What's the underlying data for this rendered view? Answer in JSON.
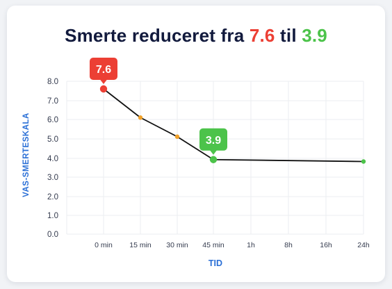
{
  "title": {
    "prefix": "Smerte reduceret fra",
    "from_value": "7.6",
    "middle": "til",
    "to_value": "3.9"
  },
  "colors": {
    "title": "#121a3d",
    "from": "#ec3f34",
    "to": "#4cc34a",
    "mid_point": "#f0a12a",
    "axis_label": "#2a6fd6",
    "line": "#111111"
  },
  "chart_data": {
    "type": "line",
    "xlabel": "TID",
    "ylabel": "VAS-SMERTESKALA",
    "categories": [
      "0 min",
      "15 min",
      "30 min",
      "45 min",
      "1h",
      "8h",
      "16h",
      "24h"
    ],
    "y_ticks": [
      "8.0",
      "7.0",
      "6.0",
      "5.0",
      "4.0",
      "3.0",
      "2.0",
      "1.0",
      "0.0"
    ],
    "ylim": [
      0,
      8
    ],
    "grid": true,
    "series": [
      {
        "points": [
          {
            "x": "0 min",
            "y": 7.6
          },
          {
            "x": "15 min",
            "y": 6.1
          },
          {
            "x": "30 min",
            "y": 5.1
          },
          {
            "x": "45 min",
            "y": 3.9
          },
          {
            "x": "24h",
            "y": 3.8
          }
        ]
      }
    ],
    "annotations": [
      {
        "x": "0 min",
        "text": "7.6",
        "color": "#ec3f34"
      },
      {
        "x": "45 min",
        "text": "3.9",
        "color": "#4cc34a"
      }
    ]
  }
}
